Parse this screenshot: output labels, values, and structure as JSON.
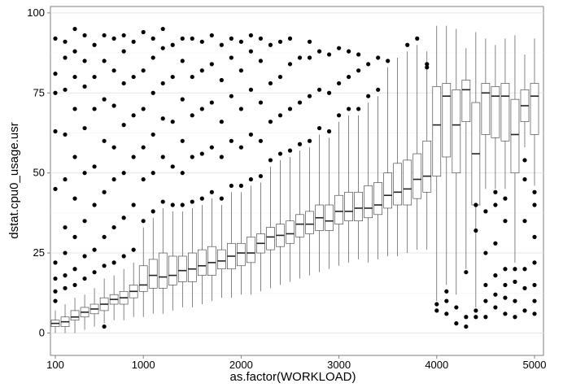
{
  "chart_data": {
    "type": "boxplot",
    "x_label": "as.factor(WORKLOAD)",
    "y_label": "dstat.cpu0_usage.usr",
    "categories": [
      "100",
      null,
      null,
      null,
      null,
      null,
      null,
      null,
      null,
      "1000",
      null,
      null,
      null,
      null,
      null,
      null,
      null,
      null,
      null,
      "2000",
      null,
      null,
      null,
      null,
      null,
      null,
      null,
      null,
      null,
      "3000",
      null,
      null,
      null,
      null,
      null,
      null,
      null,
      null,
      null,
      "4000",
      null,
      null,
      null,
      null,
      null,
      null,
      null,
      null,
      null,
      "5000"
    ],
    "low": [
      0,
      0,
      0,
      1,
      2,
      3,
      4,
      4,
      5,
      5,
      6,
      6,
      7,
      8,
      8,
      9,
      10,
      11,
      11,
      12,
      12,
      13,
      14,
      15,
      16,
      17,
      18,
      19,
      20,
      21,
      22,
      23,
      22,
      23,
      24,
      24,
      25,
      26,
      26,
      10,
      15,
      12,
      20,
      8,
      45,
      45,
      45,
      22,
      58,
      46
    ],
    "q1": [
      2,
      2,
      4,
      5,
      6,
      7,
      9,
      9,
      11,
      13,
      14,
      14,
      15,
      16,
      16,
      18,
      18,
      20,
      20,
      21,
      22,
      25,
      26,
      27,
      28,
      30,
      31,
      32,
      32,
      34,
      35,
      35,
      36,
      37,
      39,
      40,
      40,
      42,
      44,
      49,
      55,
      50,
      66,
      40,
      62,
      61,
      60,
      50,
      66,
      62
    ],
    "median": [
      3,
      3.5,
      5,
      6.5,
      7.5,
      9,
      10.5,
      11,
      13,
      15,
      18,
      17.5,
      18,
      19.5,
      20,
      21,
      22,
      22.5,
      24,
      25,
      25,
      28,
      30,
      30.5,
      31,
      34,
      34,
      36,
      35,
      38,
      38,
      39,
      39,
      40,
      43,
      44,
      45,
      48,
      49,
      65,
      74,
      65,
      76,
      56,
      75,
      74,
      74,
      62,
      71,
      74
    ],
    "q3": [
      4,
      5,
      7,
      8,
      9,
      11,
      12,
      13,
      15,
      21,
      23,
      25,
      24,
      24,
      25,
      26,
      27,
      26,
      28,
      28,
      30,
      31,
      33,
      34,
      35,
      37,
      38,
      40,
      40,
      43,
      44,
      44,
      46,
      47,
      50,
      53,
      54,
      56,
      60,
      77,
      78,
      76,
      79,
      72,
      78,
      77,
      78,
      73,
      76,
      78
    ],
    "high": [
      7,
      9,
      11,
      12,
      14,
      17,
      18,
      20,
      22,
      33,
      36,
      39,
      38,
      38,
      39,
      40,
      42,
      40,
      44,
      44,
      46,
      47,
      52,
      54,
      55,
      57,
      58,
      62,
      61,
      66,
      68,
      68,
      72,
      74,
      83,
      86,
      88,
      90,
      88,
      96,
      96,
      95,
      89,
      94,
      92,
      90,
      92,
      93,
      87,
      92
    ],
    "outliers": [
      [
        10,
        13,
        17,
        22,
        45,
        63,
        75,
        81,
        92
      ],
      [
        14,
        18,
        25,
        33,
        48,
        62,
        76,
        86,
        91
      ],
      [
        15,
        20,
        30,
        42,
        55,
        70,
        80,
        88,
        95
      ],
      [
        17,
        24,
        35,
        50,
        64,
        77,
        85,
        93
      ],
      [
        19,
        26,
        40,
        52,
        70,
        80,
        90
      ],
      [
        2,
        21,
        30,
        44,
        60,
        73,
        85,
        93
      ],
      [
        22,
        33,
        48,
        58,
        71,
        82,
        92
      ],
      [
        24,
        36,
        50,
        65,
        78,
        88,
        93
      ],
      [
        26,
        40,
        55,
        68,
        80,
        91
      ],
      [
        35,
        48,
        58,
        70,
        82,
        94
      ],
      [
        38,
        50,
        62,
        75,
        86,
        92
      ],
      [
        41,
        55,
        67,
        78,
        89,
        95
      ],
      [
        40,
        52,
        66,
        80,
        90
      ],
      [
        40,
        50,
        60,
        73,
        85,
        92
      ],
      [
        41,
        55,
        68,
        80,
        92
      ],
      [
        42,
        56,
        70,
        82,
        91
      ],
      [
        44,
        58,
        72,
        84,
        93
      ],
      [
        42,
        55,
        66,
        79,
        90
      ],
      [
        46,
        60,
        74,
        86,
        92
      ],
      [
        46,
        58,
        70,
        82,
        91
      ],
      [
        48,
        62,
        76,
        88,
        93
      ],
      [
        49,
        60,
        72,
        85,
        92
      ],
      [
        54,
        66,
        78,
        90
      ],
      [
        56,
        68,
        80,
        91
      ],
      [
        57,
        70,
        84,
        92
      ],
      [
        59,
        72,
        86
      ],
      [
        60,
        74,
        86,
        91
      ],
      [
        64,
        76,
        88
      ],
      [
        63,
        75,
        87
      ],
      [
        68,
        78,
        89
      ],
      [
        70,
        80,
        88
      ],
      [
        70,
        82,
        87
      ],
      [
        74,
        84
      ],
      [
        76,
        86
      ],
      [
        85
      ],
      [],
      [
        90
      ],
      [
        92
      ],
      [
        83,
        84
      ],
      [
        7,
        9
      ],
      [
        6,
        10,
        13
      ],
      [
        3,
        8
      ],
      [
        2,
        5,
        19
      ],
      [
        5,
        7,
        32,
        40
      ],
      [
        5,
        10,
        15,
        25,
        38
      ],
      [
        8,
        12,
        18,
        28,
        40,
        44
      ],
      [
        6,
        11,
        15,
        20,
        35,
        42
      ],
      [
        5,
        10,
        16,
        20
      ],
      [
        7,
        14,
        20,
        35,
        48,
        54
      ],
      [
        6,
        10,
        15,
        22,
        30,
        40,
        44
      ]
    ],
    "ylim": [
      -7,
      102
    ],
    "yticks": [
      0,
      25,
      50,
      75,
      100
    ],
    "grid": true
  }
}
